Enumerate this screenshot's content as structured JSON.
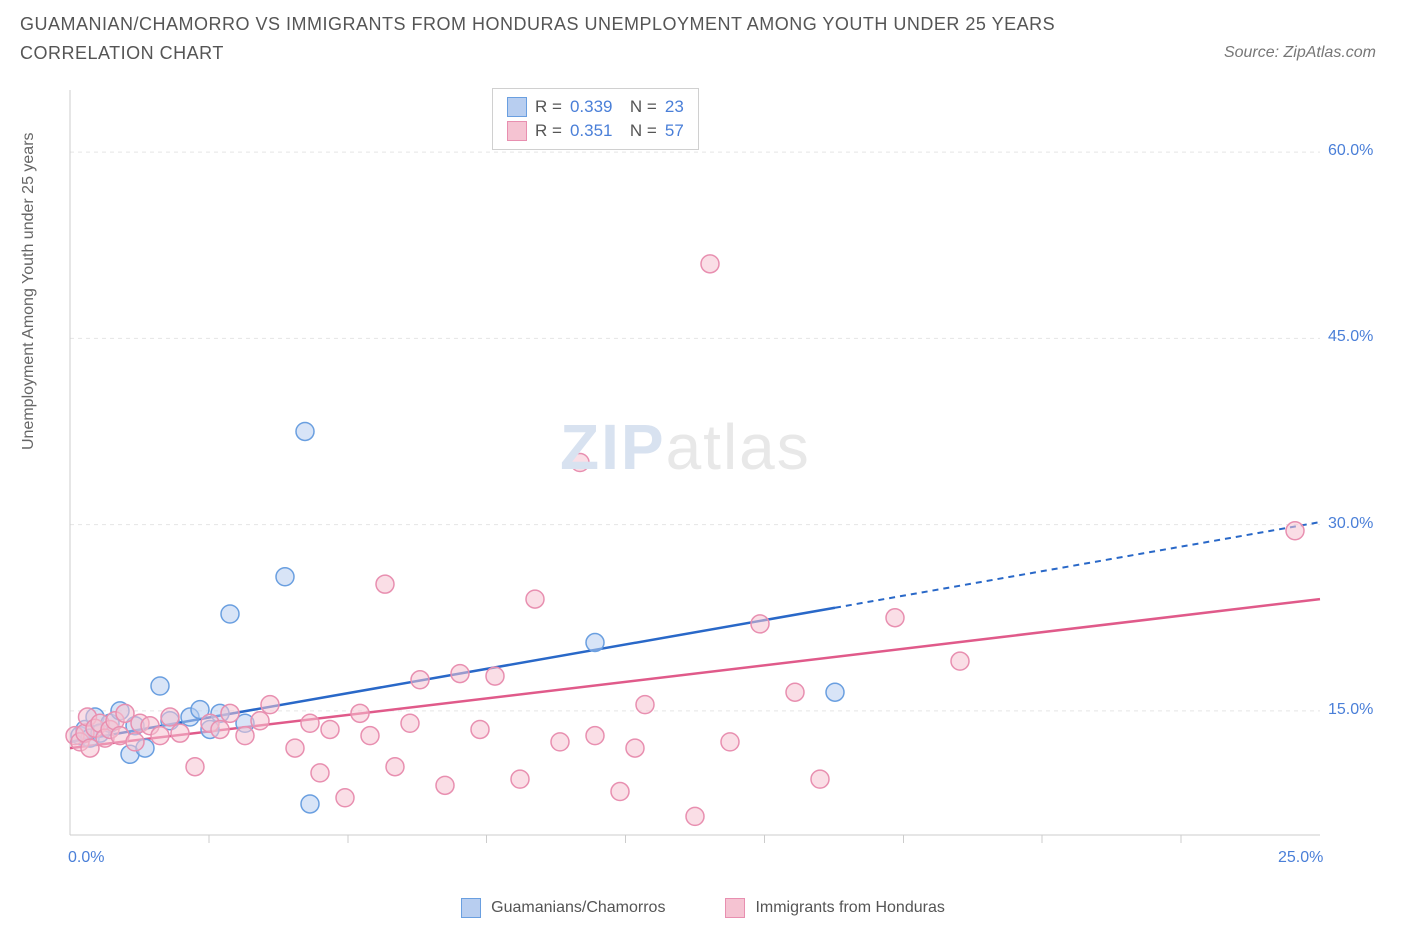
{
  "title": "GUAMANIAN/CHAMORRO VS IMMIGRANTS FROM HONDURAS UNEMPLOYMENT AMONG YOUTH UNDER 25 YEARS CORRELATION CHART",
  "source": "Source: ZipAtlas.com",
  "yAxisLabel": "Unemployment Among Youth under 25 years",
  "watermark_zip": "ZIP",
  "watermark_atlas": "atlas",
  "colors": {
    "blue_fill": "#b8cef0",
    "blue_stroke": "#6a9fe0",
    "pink_fill": "#f5c3d2",
    "pink_stroke": "#e88fb0",
    "blue_line": "#2968c8",
    "pink_line": "#e05a8a",
    "grid": "#e5e5e5",
    "axis": "#cccccc",
    "tick_text": "#4a7fd8",
    "label_text": "#666666"
  },
  "chart": {
    "type": "scatter",
    "xlim": [
      0,
      25
    ],
    "ylim": [
      5,
      65
    ],
    "x_ticks": [
      0,
      25
    ],
    "x_tick_labels": [
      "0.0%",
      "25.0%"
    ],
    "x_minor_ticks": [
      2.78,
      5.56,
      8.33,
      11.11,
      13.89,
      16.67,
      19.44,
      22.22
    ],
    "y_ticks": [
      15,
      30,
      45,
      60
    ],
    "y_tick_labels": [
      "15.0%",
      "30.0%",
      "45.0%",
      "60.0%"
    ],
    "marker_radius": 9,
    "series": [
      {
        "name": "Guamanians/Chamorros",
        "key": "blue",
        "R": "0.339",
        "N": "23",
        "trend": {
          "x1": 0,
          "y1": 12.5,
          "x2": 15.3,
          "y2": 23.3,
          "dash_x2": 25,
          "dash_y2": 30.2
        },
        "points": [
          [
            0.2,
            13.0
          ],
          [
            0.3,
            13.5
          ],
          [
            0.4,
            12.8
          ],
          [
            0.5,
            14.5
          ],
          [
            0.6,
            13.2
          ],
          [
            0.8,
            14.0
          ],
          [
            1.0,
            15.0
          ],
          [
            1.2,
            11.5
          ],
          [
            1.3,
            13.8
          ],
          [
            1.5,
            12.0
          ],
          [
            1.8,
            17.0
          ],
          [
            2.0,
            14.2
          ],
          [
            2.4,
            14.5
          ],
          [
            2.6,
            15.1
          ],
          [
            2.8,
            13.5
          ],
          [
            3.0,
            14.8
          ],
          [
            3.2,
            22.8
          ],
          [
            3.5,
            14.0
          ],
          [
            4.3,
            25.8
          ],
          [
            4.7,
            37.5
          ],
          [
            4.8,
            7.5
          ],
          [
            10.5,
            20.5
          ],
          [
            15.3,
            16.5
          ]
        ]
      },
      {
        "name": "Immigrants from Honduras",
        "key": "pink",
        "R": "0.351",
        "N": "57",
        "trend": {
          "x1": 0,
          "y1": 12.0,
          "x2": 25,
          "y2": 24.0
        },
        "points": [
          [
            0.1,
            13.0
          ],
          [
            0.2,
            12.5
          ],
          [
            0.3,
            13.2
          ],
          [
            0.35,
            14.5
          ],
          [
            0.4,
            12.0
          ],
          [
            0.5,
            13.6
          ],
          [
            0.6,
            14.0
          ],
          [
            0.7,
            12.8
          ],
          [
            0.8,
            13.5
          ],
          [
            0.9,
            14.2
          ],
          [
            1.0,
            13.0
          ],
          [
            1.1,
            14.8
          ],
          [
            1.3,
            12.5
          ],
          [
            1.4,
            14.0
          ],
          [
            1.6,
            13.8
          ],
          [
            1.8,
            13.0
          ],
          [
            2.0,
            14.5
          ],
          [
            2.2,
            13.2
          ],
          [
            2.5,
            10.5
          ],
          [
            2.8,
            14.0
          ],
          [
            3.0,
            13.5
          ],
          [
            3.2,
            14.8
          ],
          [
            3.5,
            13.0
          ],
          [
            3.8,
            14.2
          ],
          [
            4.0,
            15.5
          ],
          [
            4.5,
            12.0
          ],
          [
            4.8,
            14.0
          ],
          [
            5.0,
            10.0
          ],
          [
            5.2,
            13.5
          ],
          [
            5.5,
            8.0
          ],
          [
            5.8,
            14.8
          ],
          [
            6.0,
            13.0
          ],
          [
            6.3,
            25.2
          ],
          [
            6.5,
            10.5
          ],
          [
            6.8,
            14.0
          ],
          [
            7.0,
            17.5
          ],
          [
            7.5,
            9.0
          ],
          [
            7.8,
            18.0
          ],
          [
            8.2,
            13.5
          ],
          [
            8.5,
            17.8
          ],
          [
            9.0,
            9.5
          ],
          [
            9.3,
            24.0
          ],
          [
            9.8,
            12.5
          ],
          [
            10.2,
            35.0
          ],
          [
            10.5,
            13.0
          ],
          [
            11.0,
            8.5
          ],
          [
            11.3,
            12.0
          ],
          [
            11.5,
            15.5
          ],
          [
            12.5,
            6.5
          ],
          [
            12.8,
            51.0
          ],
          [
            13.2,
            12.5
          ],
          [
            13.8,
            22.0
          ],
          [
            14.5,
            16.5
          ],
          [
            15.0,
            9.5
          ],
          [
            16.5,
            22.5
          ],
          [
            17.8,
            19.0
          ],
          [
            24.5,
            29.5
          ]
        ]
      }
    ]
  },
  "legend_bottom": [
    {
      "label": "Guamanians/Chamorros",
      "key": "blue"
    },
    {
      "label": "Immigrants from Honduras",
      "key": "pink"
    }
  ]
}
